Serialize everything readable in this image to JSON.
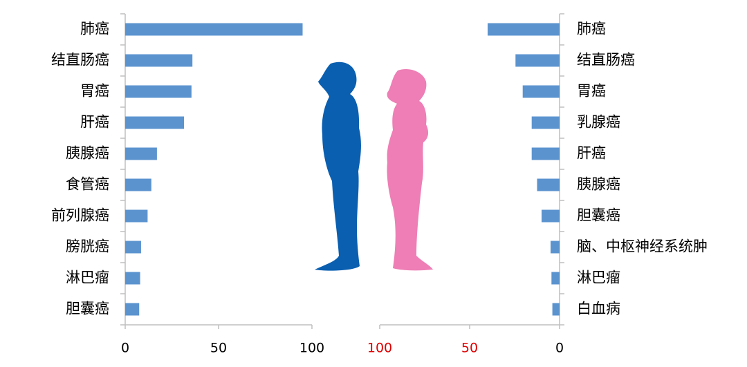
{
  "chart_data": [
    {
      "type": "bar",
      "orientation": "horizontal",
      "categories": [
        "肺癌",
        "结直肠癌",
        "胃癌",
        "肝癌",
        "胰腺癌",
        "食管癌",
        "前列腺癌",
        "膀胱癌",
        "淋巴瘤",
        "胆囊癌"
      ],
      "values": [
        95,
        36,
        35.5,
        31.5,
        17,
        14,
        12,
        8.5,
        8,
        7.5
      ],
      "color": "#5b93cf",
      "xlim": [
        0,
        100
      ],
      "xticks": [
        0,
        50,
        100
      ],
      "tick_colors": [
        "#000000",
        "#000000",
        "#000000"
      ]
    },
    {
      "type": "bar",
      "orientation": "horizontal",
      "categories": [
        "肺癌",
        "结直肠癌",
        "胃癌",
        "乳腺癌",
        "肝癌",
        "胰腺癌",
        "胆囊癌",
        "脑、中枢神经系统肿",
        "淋巴瘤",
        "白血病"
      ],
      "values": [
        40,
        24.5,
        20.5,
        15.5,
        15.5,
        12.5,
        10,
        5,
        4.5,
        4
      ],
      "color": "#5b93cf",
      "xlim": [
        0,
        100
      ],
      "xticks": [
        100,
        50,
        0
      ],
      "tick_colors": [
        "#e00000",
        "#e00000",
        "#000000"
      ]
    }
  ]
}
